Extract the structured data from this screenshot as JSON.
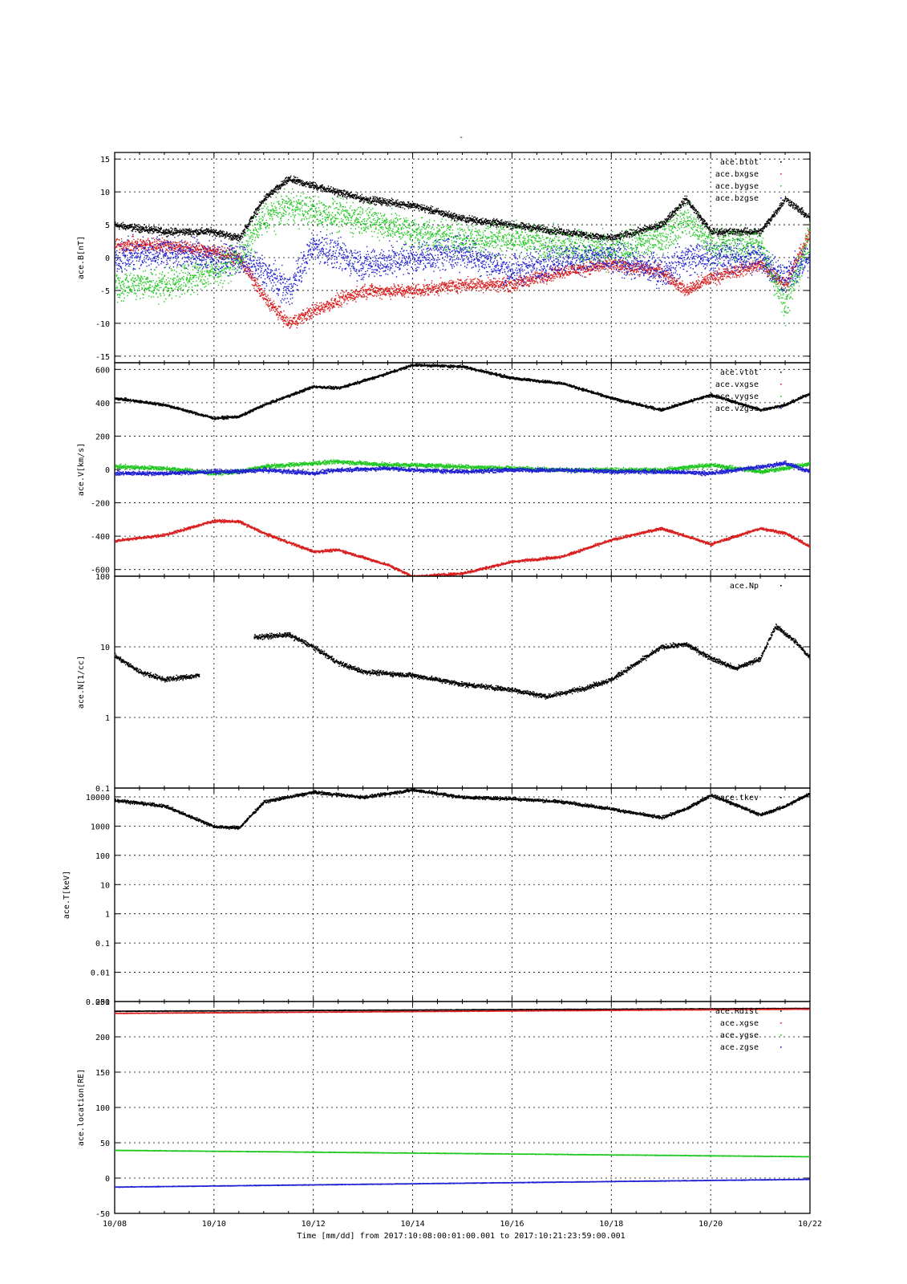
{
  "page_title": "-",
  "colors": {
    "black": "#000000",
    "red": "#d81e1e",
    "green": "#1ec81e",
    "blue": "#1e1ed2"
  },
  "x_axis": {
    "label": "Time [mm/dd]  from 2017:10:08:00:01:00.001  to  2017:10:21:23:59:00.001",
    "ticks": [
      "10/08",
      "10/10",
      "10/12",
      "10/14",
      "10/16",
      "10/18",
      "10/20",
      "10/22"
    ],
    "range_days": [
      0,
      14
    ]
  },
  "chart_data": [
    {
      "type": "scatter",
      "ylabel": "ace.B[nT]",
      "yscale": "linear",
      "ylim": [
        -16,
        16
      ],
      "yticks": [
        15,
        10,
        5,
        0,
        -5,
        -10,
        -15
      ],
      "grid": true,
      "legend_position": "top-right",
      "x": [
        "10/08",
        "10/09",
        "10/10",
        "10/10.5",
        "10/11",
        "10/11.5",
        "10/12",
        "10/13",
        "10/14",
        "10/15",
        "10/16",
        "10/17",
        "10/18",
        "10/19",
        "10/19.5",
        "10/20",
        "10/21",
        "10/21.5",
        "10/22"
      ],
      "series": [
        {
          "name": "ace.btot",
          "color": "black",
          "values": [
            5,
            4,
            4,
            3,
            9,
            12,
            11,
            9,
            8,
            6,
            5,
            4,
            3,
            5,
            9,
            4,
            4,
            9,
            6
          ]
        },
        {
          "name": "ace.bxgse",
          "color": "red",
          "values": [
            2,
            2,
            1,
            0,
            -6,
            -10,
            -8,
            -5,
            -5,
            -4,
            -4,
            -2,
            -1,
            -2,
            -5,
            -3,
            -1,
            -4,
            4
          ]
        },
        {
          "name": "ace.bygse",
          "color": "green",
          "values": [
            -4,
            -4,
            -2,
            0,
            6,
            8,
            7,
            6,
            4,
            3,
            3,
            2,
            1,
            3,
            6,
            2,
            2,
            -7,
            3
          ]
        },
        {
          "name": "ace.bzgse",
          "color": "blue",
          "values": [
            0,
            1,
            0,
            0,
            -2,
            -5,
            2,
            -1,
            0,
            1,
            -2,
            0,
            0,
            -2,
            0,
            0,
            0,
            -3,
            0
          ]
        }
      ],
      "spread": [
        0.8,
        1.5,
        3.5,
        3.5
      ]
    },
    {
      "type": "scatter",
      "ylabel": "ace.V[km/s]",
      "yscale": "linear",
      "ylim": [
        -640,
        640
      ],
      "yticks": [
        600,
        400,
        200,
        0,
        -200,
        -400,
        -600
      ],
      "grid": true,
      "legend_position": "top-right",
      "x": [
        "10/08",
        "10/09",
        "10/10",
        "10/10.5",
        "10/11",
        "10/12",
        "10/12.5",
        "10/13.5",
        "10/14",
        "10/15",
        "10/16",
        "10/17",
        "10/18",
        "10/19",
        "10/20",
        "10/21",
        "10/21.5",
        "10/22"
      ],
      "series": [
        {
          "name": "ace.vtot",
          "color": "black",
          "values": [
            430,
            390,
            310,
            320,
            390,
            500,
            490,
            580,
            630,
            620,
            550,
            520,
            430,
            360,
            450,
            360,
            390,
            460
          ]
        },
        {
          "name": "ace.vxgse",
          "color": "red",
          "values": [
            -425,
            -390,
            -305,
            -310,
            -380,
            -490,
            -480,
            -570,
            -640,
            -620,
            -550,
            -520,
            -420,
            -350,
            -445,
            -350,
            -380,
            -460
          ]
        },
        {
          "name": "ace.vygse",
          "color": "green",
          "values": [
            20,
            10,
            -20,
            -10,
            20,
            40,
            50,
            30,
            30,
            20,
            10,
            0,
            0,
            0,
            30,
            -10,
            10,
            40
          ]
        },
        {
          "name": "ace.vzgse",
          "color": "blue",
          "values": [
            -20,
            -20,
            -10,
            -10,
            0,
            -20,
            0,
            10,
            0,
            -10,
            0,
            0,
            -10,
            -10,
            -20,
            20,
            40,
            -10
          ]
        }
      ],
      "spread": [
        12,
        12,
        18,
        18
      ]
    },
    {
      "type": "scatter",
      "ylabel": "ace.N[1/cc]",
      "yscale": "log",
      "ylim": [
        0.1,
        100
      ],
      "yticks": [
        100,
        10,
        1,
        0.1
      ],
      "grid": true,
      "legend_position": "top-right",
      "segments": [
        {
          "x": [
            "10/08",
            "10/08.5",
            "10/09",
            "10/09.7"
          ],
          "values": [
            7.5,
            4.5,
            3.5,
            4
          ]
        },
        {
          "x": [
            "10/10.8",
            "10/11.5",
            "10/12",
            "10/12.5",
            "10/13",
            "10/14",
            "10/15",
            "10/16",
            "10/16.7",
            "10/17.5",
            "10/18",
            "10/19",
            "10/19.5",
            "10/20",
            "10/20.5",
            "10/21",
            "10/21.3",
            "10/21.7",
            "10/22"
          ],
          "values": [
            14,
            15,
            10,
            6,
            4.5,
            4,
            3,
            2.5,
            2,
            2.7,
            3.5,
            10,
            11,
            7,
            5,
            7,
            20,
            12,
            7
          ]
        }
      ],
      "series": [
        {
          "name": "ace.Np",
          "color": "black"
        }
      ],
      "spread": [
        0.05
      ]
    },
    {
      "type": "scatter",
      "ylabel": "ace.T[keV]",
      "yscale": "log",
      "ylim": [
        0.001,
        20000
      ],
      "yticks": [
        10000,
        1000,
        100,
        10,
        1,
        0.1,
        0.01,
        0.001
      ],
      "grid": true,
      "legend_position": "top-right",
      "x": [
        "10/08",
        "10/09",
        "10/10",
        "10/10.5",
        "10/11",
        "10/12",
        "10/13",
        "10/14",
        "10/15",
        "10/16",
        "10/17",
        "10/18",
        "10/19",
        "10/19.5",
        "10/20",
        "10/21",
        "10/21.5",
        "10/22"
      ],
      "series": [
        {
          "name": "ace.tkev",
          "color": "black",
          "values": [
            8000,
            5000,
            1000,
            900,
            7000,
            15000,
            10000,
            18000,
            10000,
            9000,
            7000,
            4000,
            2000,
            4000,
            12000,
            2500,
            5000,
            14000
          ]
        }
      ],
      "spread": [
        0.08
      ]
    },
    {
      "type": "scatter",
      "ylabel": "ace.location[RE]",
      "yscale": "linear",
      "ylim": [
        -50,
        250
      ],
      "yticks": [
        250,
        200,
        150,
        100,
        50,
        0,
        -50
      ],
      "grid": true,
      "legend_position": "top-right",
      "x": [
        "10/08",
        "10/22"
      ],
      "series": [
        {
          "name": "ace.Rdist",
          "color": "black",
          "values": [
            237,
            241
          ]
        },
        {
          "name": "ace.xgse",
          "color": "red",
          "values": [
            234,
            240
          ]
        },
        {
          "name": "ace.ygse",
          "color": "green",
          "values": [
            40,
            31
          ]
        },
        {
          "name": "ace.zgse",
          "color": "blue",
          "values": [
            -12,
            -1
          ]
        }
      ],
      "spread": [
        0.6,
        0.6,
        0.6,
        0.6
      ]
    }
  ]
}
